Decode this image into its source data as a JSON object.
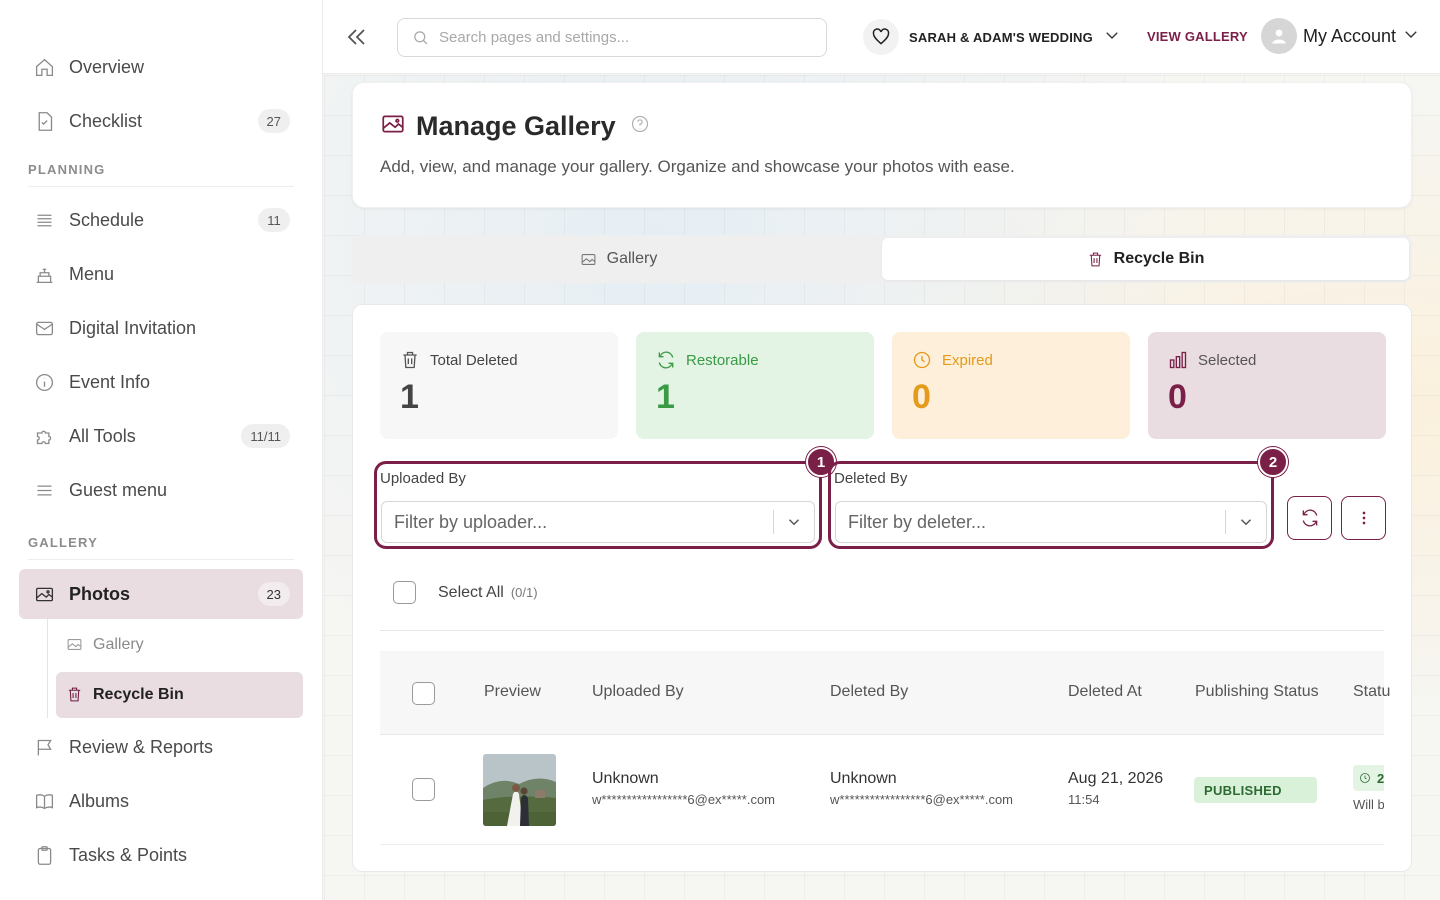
{
  "sidebar": {
    "top_items": [
      {
        "label": "Overview",
        "icon": "home-icon"
      },
      {
        "label": "Checklist",
        "icon": "checklist-icon",
        "badge": "27"
      }
    ],
    "planning_label": "PLANNING",
    "planning_items": [
      {
        "label": "Schedule",
        "icon": "list-icon",
        "badge": "11"
      },
      {
        "label": "Menu",
        "icon": "cake-icon"
      },
      {
        "label": "Digital Invitation",
        "icon": "envelope-icon"
      },
      {
        "label": "Event Info",
        "icon": "info-icon"
      },
      {
        "label": "All Tools",
        "icon": "puzzle-icon",
        "badge": "11/11"
      },
      {
        "label": "Guest menu",
        "icon": "menu-icon"
      }
    ],
    "gallery_label": "GALLERY",
    "photos": {
      "label": "Photos",
      "badge": "23"
    },
    "sub_items": [
      {
        "label": "Gallery"
      },
      {
        "label": "Recycle Bin"
      }
    ],
    "bottom_items": [
      {
        "label": "Review & Reports",
        "icon": "flag-icon"
      },
      {
        "label": "Albums",
        "icon": "book-icon"
      },
      {
        "label": "Tasks & Points",
        "icon": "clipboard-icon"
      }
    ]
  },
  "topbar": {
    "search_placeholder": "Search pages and settings...",
    "event_name": "SARAH & ADAM'S WEDDING",
    "view_gallery": "VIEW GALLERY",
    "account": "My Account"
  },
  "header": {
    "title": "Manage Gallery",
    "subtitle": "Add, view, and manage your gallery. Organize and showcase your photos with ease."
  },
  "tabs": {
    "gallery": "Gallery",
    "recycle_bin": "Recycle Bin"
  },
  "stats": {
    "total": {
      "label": "Total Deleted",
      "value": "1"
    },
    "restorable": {
      "label": "Restorable",
      "value": "1"
    },
    "expired": {
      "label": "Expired",
      "value": "0"
    },
    "selected": {
      "label": "Selected",
      "value": "0"
    }
  },
  "filters": {
    "uploaded_by": {
      "label": "Uploaded By",
      "placeholder": "Filter by uploader...",
      "marker": "1"
    },
    "deleted_by": {
      "label": "Deleted By",
      "placeholder": "Filter by deleter...",
      "marker": "2"
    }
  },
  "select_all": {
    "label": "Select All",
    "count": "(0/1)"
  },
  "table": {
    "headers": [
      "Preview",
      "Uploaded By",
      "Deleted By",
      "Deleted At",
      "Publishing Status",
      "Statu"
    ],
    "rows": [
      {
        "uploaded_by": "Unknown",
        "uploaded_email": "w*****************6@ex*****.com",
        "deleted_by": "Unknown",
        "deleted_email": "w*****************6@ex*****.com",
        "deleted_date": "Aug 21, 2026",
        "deleted_time": "11:54",
        "publishing_status": "PUBLISHED",
        "status_chip": "2",
        "status_note": "Will b"
      }
    ]
  },
  "colors": {
    "accent": "#7a1f48",
    "active_bg": "#e9dde2",
    "restorable": "#3a9a46",
    "expired": "#e49a1b"
  }
}
